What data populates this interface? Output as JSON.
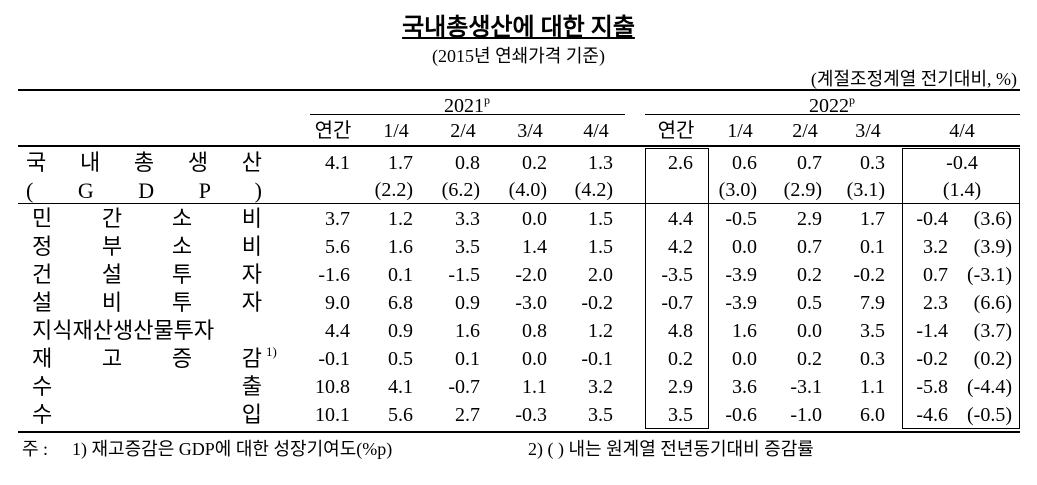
{
  "header": {
    "title": "국내총생산에 대한 지출",
    "subtitle": "(2015년 연쇄가격 기준)",
    "unit": "(계절조정계열 전기대비, %)"
  },
  "table": {
    "years": [
      {
        "year": "2021",
        "mark": "p"
      },
      {
        "year": "2022",
        "mark": "p"
      }
    ],
    "columns": [
      "연간",
      "1/4",
      "2/4",
      "3/4",
      "4/4",
      "연간",
      "1/4",
      "2/4",
      "3/4",
      "4/4"
    ],
    "gdp": {
      "label": "국 내 총 생 산",
      "sublabel": "( G D P )",
      "values": [
        "4.1",
        "1.7",
        "0.8",
        "0.2",
        "1.3",
        "2.6",
        "0.6",
        "0.7",
        "0.3",
        "-0.4"
      ],
      "yoy": [
        null,
        "(2.2)",
        "(6.2)",
        "(4.0)",
        "(4.2)",
        null,
        "(3.0)",
        "(2.9)",
        "(3.1)",
        "(1.4)"
      ]
    },
    "rows": [
      {
        "label": "민 간 소 비",
        "values": [
          "3.7",
          "1.2",
          "3.3",
          "0.0",
          "1.5",
          "4.4",
          "-0.5",
          "2.9",
          "1.7",
          "-0.4"
        ],
        "yoy": "(3.6)"
      },
      {
        "label": "정 부 소 비",
        "values": [
          "5.6",
          "1.6",
          "3.5",
          "1.4",
          "1.5",
          "4.2",
          "0.0",
          "0.7",
          "0.1",
          "3.2"
        ],
        "yoy": "(3.9)"
      },
      {
        "label": "건 설 투 자",
        "values": [
          "-1.6",
          "0.1",
          "-1.5",
          "-2.0",
          "2.0",
          "-3.5",
          "-3.9",
          "0.2",
          "-0.2",
          "0.7"
        ],
        "yoy": "(-3.1)"
      },
      {
        "label": "설 비 투 자",
        "values": [
          "9.0",
          "6.8",
          "0.9",
          "-3.0",
          "-0.2",
          "-0.7",
          "-3.9",
          "0.5",
          "7.9",
          "2.3"
        ],
        "yoy": "(6.6)"
      },
      {
        "label": "지식재산생산물투자",
        "values": [
          "4.4",
          "0.9",
          "1.6",
          "0.8",
          "1.2",
          "4.8",
          "1.6",
          "0.0",
          "3.5",
          "-1.4"
        ],
        "yoy": "(3.7)"
      },
      {
        "label": "재 고 증 감",
        "note": "1)",
        "values": [
          "-0.1",
          "0.5",
          "0.1",
          "0.0",
          "-0.1",
          "0.2",
          "0.0",
          "0.2",
          "0.3",
          "-0.2"
        ],
        "yoy": "(0.2)"
      },
      {
        "label": "수 출",
        "values": [
          "10.8",
          "4.1",
          "-0.7",
          "1.1",
          "3.2",
          "2.9",
          "3.6",
          "-3.1",
          "1.1",
          "-5.8"
        ],
        "yoy": "(-4.4)"
      },
      {
        "label": "수 입",
        "values": [
          "10.1",
          "5.6",
          "2.7",
          "-0.3",
          "3.5",
          "3.5",
          "-0.6",
          "-1.0",
          "6.0",
          "-4.6"
        ],
        "yoy": "(-0.5)"
      }
    ]
  },
  "footnote": {
    "prefix": "주 :",
    "notes": [
      "1) 재고증감은 GDP에 대한 성장기여도(%p)",
      "2) (  ) 내는 원계열 전년동기대비 증감률"
    ]
  }
}
